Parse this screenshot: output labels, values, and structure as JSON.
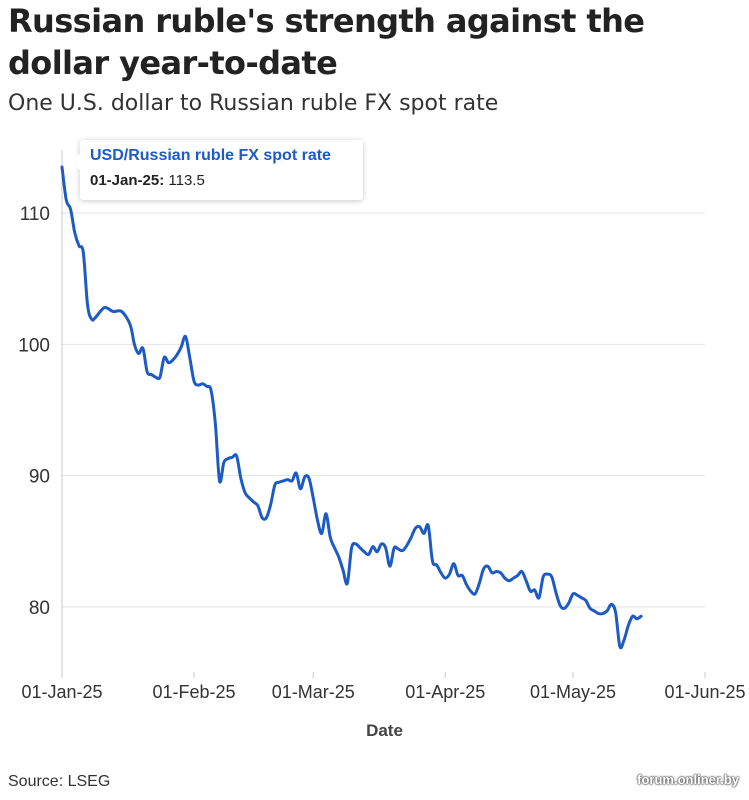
{
  "chart_data": {
    "type": "line",
    "title": "Russian ruble's strength against the dollar year-to-date",
    "subtitle": "One U.S. dollar to Russian ruble FX spot rate",
    "xlabel": "Date",
    "ylabel": "",
    "ylim": [
      75,
      115
    ],
    "yticks": [
      80,
      90,
      100,
      110
    ],
    "xticks": [
      {
        "label": "01-Jan-25",
        "day": 0
      },
      {
        "label": "01-Feb-25",
        "day": 31
      },
      {
        "label": "01-Mar-25",
        "day": 59
      },
      {
        "label": "01-Apr-25",
        "day": 90
      },
      {
        "label": "01-May-25",
        "day": 120
      },
      {
        "label": "01-Jun-25",
        "day": 151
      }
    ],
    "series": [
      {
        "name": "USD/Russian ruble FX spot rate",
        "color": "#1d5bc4",
        "points": [
          [
            0,
            113.5
          ],
          [
            1,
            111
          ],
          [
            2,
            110.3
          ],
          [
            3,
            108.5
          ],
          [
            4,
            107.5
          ],
          [
            5,
            107
          ],
          [
            6,
            103
          ],
          [
            7,
            101.9
          ],
          [
            8,
            102.1
          ],
          [
            10,
            102.8
          ],
          [
            12,
            102.5
          ],
          [
            14,
            102.5
          ],
          [
            16,
            101.5
          ],
          [
            17,
            100
          ],
          [
            18,
            99.3
          ],
          [
            19,
            99.7
          ],
          [
            20,
            97.9
          ],
          [
            21,
            97.7
          ],
          [
            22,
            97.5
          ],
          [
            23,
            97.5
          ],
          [
            24,
            99
          ],
          [
            25,
            98.6
          ],
          [
            26,
            98.8
          ],
          [
            27,
            99.2
          ],
          [
            28,
            99.8
          ],
          [
            29,
            100.6
          ],
          [
            30,
            99
          ],
          [
            31,
            97.2
          ],
          [
            32,
            96.9
          ],
          [
            33,
            97
          ],
          [
            34,
            96.8
          ],
          [
            35,
            96.5
          ],
          [
            36,
            94
          ],
          [
            37,
            89.6
          ],
          [
            38,
            91
          ],
          [
            39,
            91.3
          ],
          [
            40,
            91.4
          ],
          [
            41,
            91.5
          ],
          [
            42,
            89.8
          ],
          [
            43,
            88.7
          ],
          [
            44,
            88.3
          ],
          [
            45,
            88
          ],
          [
            46,
            87.7
          ],
          [
            47,
            86.8
          ],
          [
            48,
            86.8
          ],
          [
            49,
            87.8
          ],
          [
            50,
            89.3
          ],
          [
            51,
            89.5
          ],
          [
            52,
            89.6
          ],
          [
            53,
            89.7
          ],
          [
            54,
            89.6
          ],
          [
            55,
            90.2
          ],
          [
            56,
            89
          ],
          [
            57,
            89.9
          ],
          [
            58,
            89.8
          ],
          [
            59,
            88.3
          ],
          [
            60,
            86.6
          ],
          [
            61,
            85.6
          ],
          [
            62,
            87.1
          ],
          [
            63,
            85.3
          ],
          [
            64,
            84.5
          ],
          [
            65,
            83.8
          ],
          [
            66,
            82.8
          ],
          [
            67,
            81.8
          ],
          [
            68,
            84.5
          ],
          [
            69,
            84.8
          ],
          [
            70,
            84.5
          ],
          [
            71,
            84.2
          ],
          [
            72,
            84
          ],
          [
            73,
            84.6
          ],
          [
            74,
            84.2
          ],
          [
            75,
            84.8
          ],
          [
            76,
            84.5
          ],
          [
            77,
            83.1
          ],
          [
            78,
            84.5
          ],
          [
            79,
            84.4
          ],
          [
            80,
            84.3
          ],
          [
            81,
            84.7
          ],
          [
            82,
            85.3
          ],
          [
            83,
            86
          ],
          [
            84,
            86.1
          ],
          [
            85,
            85.6
          ],
          [
            86,
            86.2
          ],
          [
            87,
            83.5
          ],
          [
            88,
            83.2
          ],
          [
            89,
            82.6
          ],
          [
            90,
            82.2
          ],
          [
            91,
            82.5
          ],
          [
            92,
            83.3
          ],
          [
            93,
            82.4
          ],
          [
            94,
            82.4
          ],
          [
            95,
            81.7
          ],
          [
            96,
            81.2
          ],
          [
            97,
            81
          ],
          [
            98,
            81.8
          ],
          [
            99,
            82.9
          ],
          [
            100,
            83.1
          ],
          [
            101,
            82.6
          ],
          [
            102,
            82.7
          ],
          [
            103,
            82.6
          ],
          [
            104,
            82.2
          ],
          [
            105,
            82
          ],
          [
            106,
            82.2
          ],
          [
            107,
            82.4
          ],
          [
            108,
            82.7
          ],
          [
            109,
            82
          ],
          [
            110,
            81.2
          ],
          [
            111,
            81.3
          ],
          [
            112,
            80.7
          ],
          [
            113,
            82.3
          ],
          [
            114,
            82.5
          ],
          [
            115,
            82.3
          ],
          [
            116,
            81.1
          ],
          [
            117,
            80.1
          ],
          [
            118,
            79.9
          ],
          [
            119,
            80.3
          ],
          [
            120,
            81
          ],
          [
            121,
            80.9
          ],
          [
            122,
            80.7
          ],
          [
            123,
            80.5
          ],
          [
            124,
            79.9
          ],
          [
            125,
            79.7
          ],
          [
            126,
            79.5
          ],
          [
            127,
            79.5
          ],
          [
            128,
            79.7
          ],
          [
            129,
            80.2
          ],
          [
            130,
            79.6
          ],
          [
            131,
            77
          ],
          [
            132,
            77.5
          ],
          [
            133,
            78.6
          ],
          [
            134,
            79.3
          ],
          [
            135,
            79.1
          ],
          [
            136,
            79.3
          ]
        ]
      }
    ],
    "tooltip": {
      "series_label": "USD/Russian ruble FX spot rate",
      "date": "01-Jan-25:",
      "value": "113.5"
    }
  },
  "footer": {
    "source": "Source: LSEG",
    "watermark": "forum.onliner.by"
  },
  "colors": {
    "line": "#1d5bc4",
    "grid": "#e3e3e3",
    "axis": "#c8c8c8"
  }
}
